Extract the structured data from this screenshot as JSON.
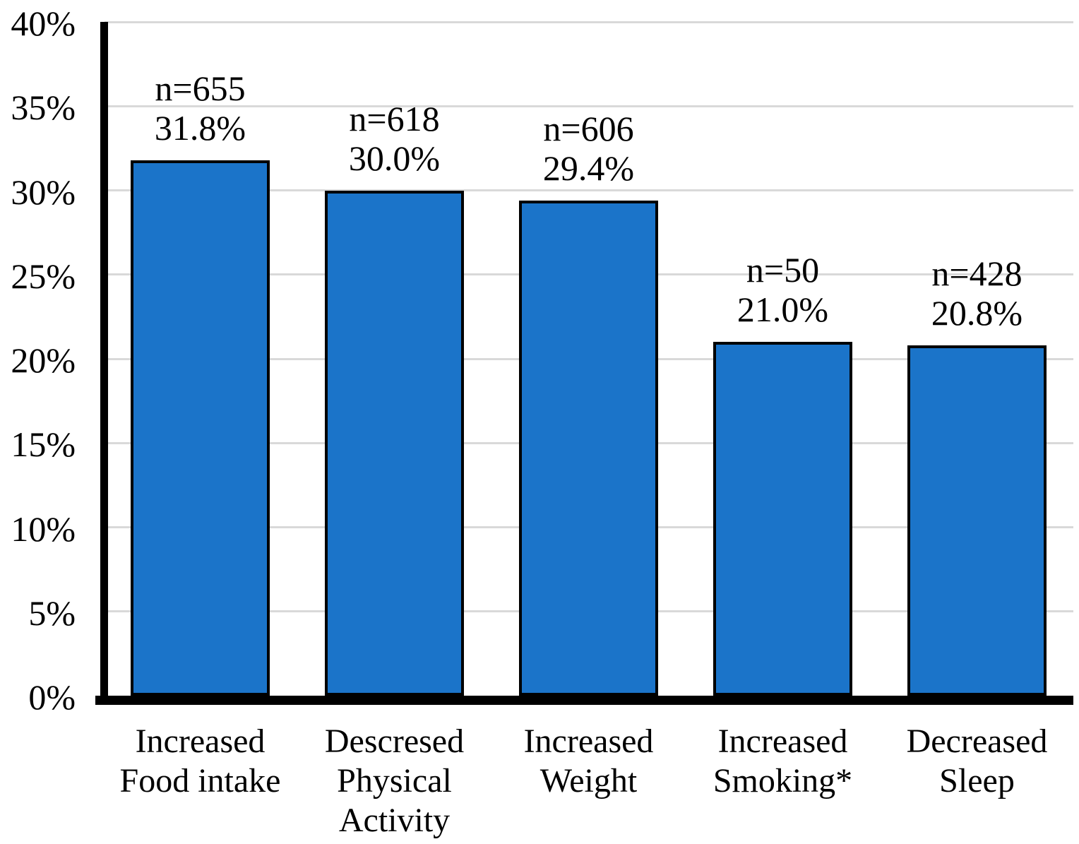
{
  "chart_data": {
    "type": "bar",
    "title": "",
    "xlabel": "",
    "ylabel": "",
    "categories": [
      "Increased Food intake",
      "Descresed Physical Activity",
      "Increased Weight",
      "Increased Smoking*",
      "Decreased Sleep"
    ],
    "values": [
      31.8,
      30.0,
      29.4,
      21.0,
      20.8
    ],
    "points": [
      {
        "category_lines": [
          "Increased",
          "Food intake"
        ],
        "n": 655,
        "n_label": "n=655",
        "pct_label": "31.8%",
        "value": 31.8
      },
      {
        "category_lines": [
          "Descresed",
          "Physical",
          "Activity"
        ],
        "n": 618,
        "n_label": "n=618",
        "pct_label": "30.0%",
        "value": 30.0
      },
      {
        "category_lines": [
          "Increased",
          "Weight"
        ],
        "n": 606,
        "n_label": "n=606",
        "pct_label": "29.4%",
        "value": 29.4
      },
      {
        "category_lines": [
          "Increased",
          "Smoking*"
        ],
        "n": 50,
        "n_label": "n=50",
        "pct_label": "21.0%",
        "value": 21.0
      },
      {
        "category_lines": [
          "Decreased",
          "Sleep"
        ],
        "n": 428,
        "n_label": "n=428",
        "pct_label": "20.8%",
        "value": 20.8
      }
    ],
    "ylim": [
      0,
      40
    ],
    "ytick_step": 5,
    "ytick_labels": [
      "0%",
      "5%",
      "10%",
      "15%",
      "20%",
      "25%",
      "30%",
      "35%",
      "40%"
    ],
    "grid": true,
    "legend_position": "none",
    "colors": {
      "bar_fill": "#1B74C9",
      "bar_border": "#000000",
      "gridline": "#D9D9D9",
      "axis": "#000000",
      "text": "#000000",
      "background": "#FFFFFF"
    }
  }
}
